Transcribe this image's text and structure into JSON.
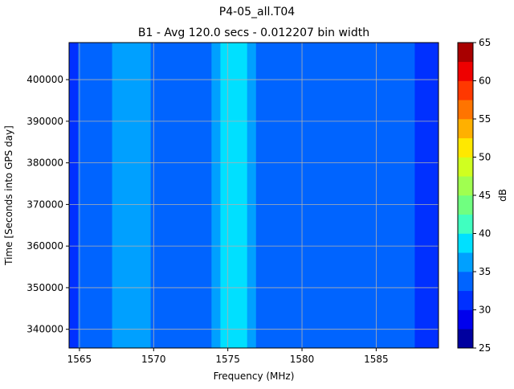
{
  "chart_data": {
    "type": "heatmap",
    "title": "P4-05_all.T04",
    "subtitle": "B1 - Avg 120.0 secs - 0.012207 bin width",
    "xlabel": "Frequency (MHz)",
    "ylabel": "Time [Seconds into GPS day]",
    "xlim": [
      1564.3,
      1589.2
    ],
    "ylim": [
      335500,
      408900
    ],
    "xticks": [
      1565,
      1570,
      1575,
      1580,
      1585
    ],
    "yticks": [
      340000,
      350000,
      360000,
      370000,
      380000,
      390000,
      400000
    ],
    "grid": true,
    "colorbar": {
      "label": "dB",
      "min": 25,
      "max": 65,
      "step": 2.5,
      "ticks": [
        25,
        30,
        35,
        40,
        45,
        50,
        55,
        60,
        65
      ],
      "colors": [
        "#00009f",
        "#0000ed",
        "#0030ff",
        "#0064ff",
        "#00a0ff",
        "#00e0ff",
        "#40ffc0",
        "#70ff80",
        "#a0ff50",
        "#d0ff20",
        "#ffe800",
        "#ffb000",
        "#ff7400",
        "#ff3800",
        "#ee0000",
        "#a80000"
      ]
    },
    "bands": [
      {
        "from": 1564.3,
        "to": 1564.9,
        "level": 31.25
      },
      {
        "from": 1564.9,
        "to": 1565.2,
        "level": 32.5
      },
      {
        "from": 1565.2,
        "to": 1567.2,
        "level": 33.75
      },
      {
        "from": 1567.2,
        "to": 1569.8,
        "level": 36.25
      },
      {
        "from": 1569.8,
        "to": 1573.9,
        "level": 33.75
      },
      {
        "from": 1573.9,
        "to": 1574.5,
        "level": 36.25
      },
      {
        "from": 1574.5,
        "to": 1576.3,
        "level": 38.75
      },
      {
        "from": 1576.3,
        "to": 1576.9,
        "level": 36.25
      },
      {
        "from": 1576.9,
        "to": 1587.6,
        "level": 33.75
      },
      {
        "from": 1587.6,
        "to": 1589.2,
        "level": 31.25
      }
    ]
  }
}
